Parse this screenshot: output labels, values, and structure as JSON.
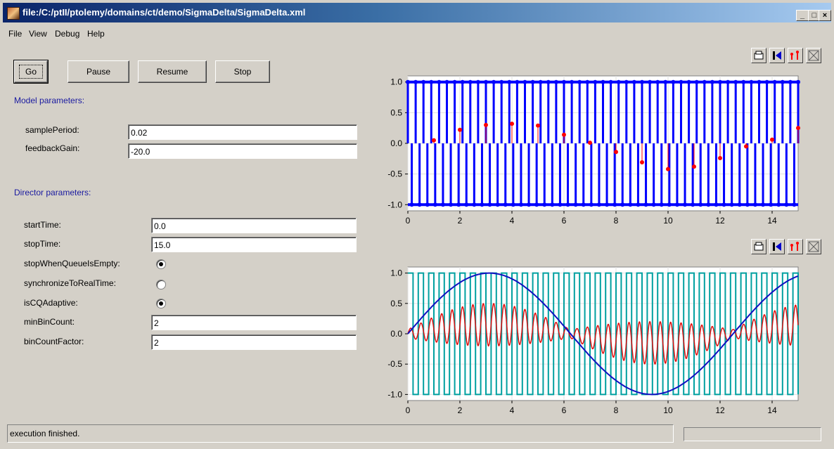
{
  "window": {
    "title": "file:/C:/ptII/ptolemy/domains/ct/demo/SigmaDelta/SigmaDelta.xml"
  },
  "menu": [
    {
      "label": "File",
      "accel": "F"
    },
    {
      "label": "View",
      "accel": "V"
    },
    {
      "label": "Debug",
      "accel": "D"
    },
    {
      "label": "Help",
      "accel": "H"
    }
  ],
  "buttons": {
    "go": "Go",
    "pause": "Pause",
    "resume": "Resume",
    "stop": "Stop"
  },
  "model": {
    "heading": "Model parameters:",
    "samplePeriod": {
      "label": "samplePeriod:",
      "value": "0.02"
    },
    "feedbackGain": {
      "label": "feedbackGain:",
      "value": "-20.0"
    }
  },
  "director": {
    "heading": "Director parameters:",
    "startTime": {
      "label": "startTime:",
      "value": "0.0"
    },
    "stopTime": {
      "label": "stopTime:",
      "value": "15.0"
    },
    "stopWhenQueueIsEmpty": {
      "label": "stopWhenQueueIsEmpty:",
      "checked": true
    },
    "synchronizeToRealTime": {
      "label": "synchronizeToRealTime:",
      "checked": false
    },
    "isCQAdaptive": {
      "label": "isCQAdaptive:",
      "checked": true
    },
    "minBinCount": {
      "label": "minBinCount:",
      "value": "2"
    },
    "binCountFactor": {
      "label": "binCountFactor:",
      "value": "2"
    }
  },
  "status": {
    "text": "execution finished."
  },
  "icons": [
    "print-icon",
    "reset-axes-icon",
    "fill-icon",
    "zoom-fit-icon"
  ],
  "colors": {
    "blue": "#0000ff",
    "red": "#ff0000",
    "teal": "#00a0a0",
    "darkblue": "#1010c0"
  },
  "chart_data": [
    {
      "type": "scatter",
      "xlim": [
        0,
        15
      ],
      "ylim": [
        -1.1,
        1.1
      ],
      "x_ticks": [
        "0",
        "2",
        "4",
        "6",
        "8",
        "10",
        "12",
        "14"
      ],
      "y_ticks": [
        "1.0",
        "0.5",
        "0.0",
        "-0.5",
        "-1.0"
      ],
      "grid": true,
      "series": [
        {
          "style": "stem",
          "color": "#0000ff",
          "x_start": 0,
          "x_end": 15,
          "period": 0.3,
          "values": "alternating ±1"
        },
        {
          "style": "stem",
          "color": "#ff0000",
          "x": [
            1,
            2,
            3,
            4,
            5,
            6,
            7,
            8,
            9,
            10,
            11,
            12,
            13,
            14,
            15
          ],
          "y": [
            0.05,
            0.22,
            0.3,
            0.32,
            0.29,
            0.14,
            0.01,
            -0.14,
            -0.31,
            -0.42,
            -0.38,
            -0.24,
            -0.05,
            0.06,
            0.25
          ]
        }
      ]
    },
    {
      "type": "line",
      "xlim": [
        0,
        15
      ],
      "ylim": [
        -1.1,
        1.1
      ],
      "x_ticks": [
        "0",
        "2",
        "4",
        "6",
        "8",
        "10",
        "12",
        "14"
      ],
      "y_ticks": [
        "1.0",
        "0.5",
        "0.0",
        "-0.5",
        "-1.0"
      ],
      "grid": true,
      "series": [
        {
          "color": "#00a0a0",
          "shape": "square wave ±1",
          "period": 0.4
        },
        {
          "color": "#1010c0",
          "shape": "sine",
          "amplitude": 1.0,
          "period": 12.5
        },
        {
          "color": "#e01010",
          "shape": "oscillating envelope",
          "amplitude": 0.35
        }
      ]
    }
  ]
}
